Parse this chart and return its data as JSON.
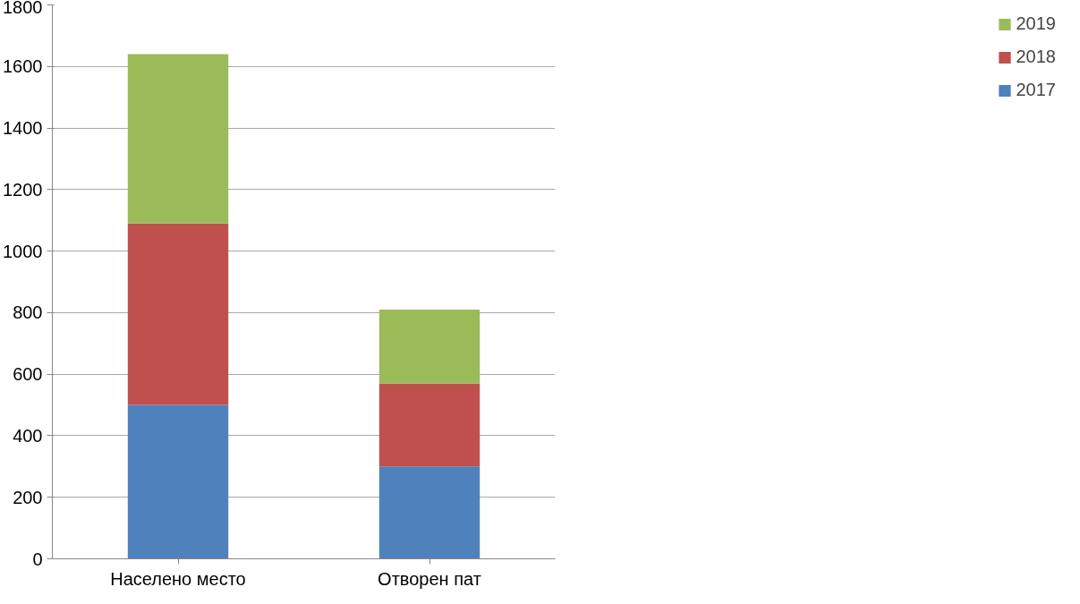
{
  "chart_data": {
    "type": "bar",
    "stacked": true,
    "categories": [
      "Населено место",
      "Отворен пат"
    ],
    "series": [
      {
        "name": "2017",
        "color": "#4f81bd",
        "values": [
          500,
          300
        ]
      },
      {
        "name": "2018",
        "color": "#c0504d",
        "values": [
          590,
          270
        ]
      },
      {
        "name": "2019",
        "color": "#9bbb59",
        "values": [
          550,
          240
        ]
      }
    ],
    "ylim": [
      0,
      1800
    ],
    "yticks": [
      0,
      200,
      400,
      600,
      800,
      1000,
      1200,
      1400,
      1600,
      1800
    ],
    "grid": "y",
    "legend": "right"
  }
}
